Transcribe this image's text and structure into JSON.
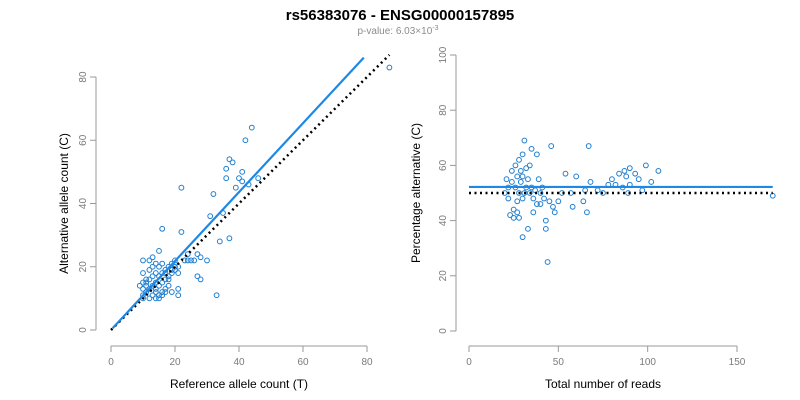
{
  "title": "rs56383076 - ENSG00000157895",
  "subtitle": {
    "prefix": "p-value: 6.03×10",
    "exponent": "-3"
  },
  "colors": {
    "points": "#1f7fd1",
    "fit_line": "#1e88e5",
    "reference_line": "#000000",
    "axis": "#9a9a9a"
  },
  "chart_data": [
    {
      "type": "scatter",
      "xlabel": "Reference allele count (T)",
      "ylabel": "Alternative allele count (C)",
      "xlim": [
        0,
        80
      ],
      "ylim": [
        0,
        80
      ],
      "xticks": [
        0,
        20,
        40,
        60,
        80
      ],
      "yticks": [
        0,
        20,
        40,
        60,
        80
      ],
      "grid": false,
      "points": [
        [
          10,
          10
        ],
        [
          10,
          11
        ],
        [
          10,
          13
        ],
        [
          10,
          15
        ],
        [
          10,
          18
        ],
        [
          10,
          22
        ],
        [
          11,
          12
        ],
        [
          11,
          14
        ],
        [
          11,
          16
        ],
        [
          12,
          10
        ],
        [
          12,
          13
        ],
        [
          12,
          16
        ],
        [
          12,
          19
        ],
        [
          12,
          22
        ],
        [
          13,
          11
        ],
        [
          13,
          14
        ],
        [
          13,
          17
        ],
        [
          13,
          20
        ],
        [
          13,
          23
        ],
        [
          14,
          12
        ],
        [
          14,
          15
        ],
        [
          14,
          18
        ],
        [
          14,
          21
        ],
        [
          14,
          13
        ],
        [
          15,
          10
        ],
        [
          15,
          14
        ],
        [
          15,
          17
        ],
        [
          15,
          20
        ],
        [
          15,
          25
        ],
        [
          15,
          11
        ],
        [
          16,
          12
        ],
        [
          16,
          15
        ],
        [
          16,
          18
        ],
        [
          16,
          21
        ],
        [
          16,
          32
        ],
        [
          16,
          11
        ],
        [
          17,
          13
        ],
        [
          17,
          16
        ],
        [
          17,
          19
        ],
        [
          17,
          12
        ],
        [
          18,
          14
        ],
        [
          18,
          17
        ],
        [
          18,
          20
        ],
        [
          18,
          16
        ],
        [
          19,
          18
        ],
        [
          19,
          21
        ],
        [
          19,
          19
        ],
        [
          20,
          19
        ],
        [
          20,
          22
        ],
        [
          20,
          20
        ],
        [
          21,
          11
        ],
        [
          21,
          13
        ],
        [
          21,
          18
        ],
        [
          21,
          20
        ],
        [
          22,
          45
        ],
        [
          22,
          31
        ],
        [
          23,
          22
        ],
        [
          24,
          24
        ],
        [
          25,
          22
        ],
        [
          26,
          22
        ],
        [
          27,
          17
        ],
        [
          27,
          24
        ],
        [
          28,
          16
        ],
        [
          28,
          23
        ],
        [
          30,
          22
        ],
        [
          31,
          36
        ],
        [
          32,
          43
        ],
        [
          33,
          11
        ],
        [
          34,
          28
        ],
        [
          35,
          37
        ],
        [
          36,
          48
        ],
        [
          36,
          51
        ],
        [
          37,
          54
        ],
        [
          37,
          29
        ],
        [
          38,
          53
        ],
        [
          39,
          45
        ],
        [
          40,
          48
        ],
        [
          41,
          50
        ],
        [
          41,
          47
        ],
        [
          42,
          60
        ],
        [
          43,
          46
        ],
        [
          44,
          64
        ],
        [
          46,
          48
        ],
        [
          87,
          83
        ],
        [
          24,
          22
        ],
        [
          17,
          18
        ],
        [
          11,
          15
        ],
        [
          9,
          14
        ],
        [
          19,
          12
        ],
        [
          14,
          10
        ]
      ],
      "fit_line": {
        "slope": 1.09,
        "intercept": 0,
        "x_range": [
          0.5,
          79
        ]
      },
      "reference_line": {
        "slope": 1.0,
        "intercept": 0,
        "x_range": [
          0,
          87
        ]
      }
    },
    {
      "type": "scatter",
      "xlabel": "Total number of reads",
      "ylabel": "Percentage alternative (C)",
      "xlim": [
        0,
        150
      ],
      "ylim": [
        0,
        100
      ],
      "xticks": [
        0,
        50,
        100,
        150
      ],
      "yticks": [
        0,
        20,
        40,
        60,
        80,
        100
      ],
      "grid": false,
      "points": [
        [
          20,
          50
        ],
        [
          21,
          55
        ],
        [
          22,
          52
        ],
        [
          22,
          48
        ],
        [
          23,
          42
        ],
        [
          24,
          54
        ],
        [
          24,
          58
        ],
        [
          25,
          41
        ],
        [
          25,
          44
        ],
        [
          26,
          60
        ],
        [
          26,
          52
        ],
        [
          27,
          43
        ],
        [
          27,
          47
        ],
        [
          27,
          56
        ],
        [
          28,
          50
        ],
        [
          28,
          62
        ],
        [
          28,
          41
        ],
        [
          29,
          54
        ],
        [
          29,
          58
        ],
        [
          30,
          34
        ],
        [
          30,
          48
        ],
        [
          30,
          64
        ],
        [
          31,
          50
        ],
        [
          31,
          69
        ],
        [
          32,
          52
        ],
        [
          32,
          59
        ],
        [
          33,
          55
        ],
        [
          33,
          37
        ],
        [
          34,
          50
        ],
        [
          34,
          60
        ],
        [
          35,
          52
        ],
        [
          35,
          66
        ],
        [
          36,
          43
        ],
        [
          36,
          48
        ],
        [
          37,
          51
        ],
        [
          38,
          46
        ],
        [
          38,
          64
        ],
        [
          39,
          55
        ],
        [
          40,
          50
        ],
        [
          40,
          46
        ],
        [
          41,
          52
        ],
        [
          42,
          48
        ],
        [
          43,
          37
        ],
        [
          43,
          40
        ],
        [
          44,
          25
        ],
        [
          45,
          47
        ],
        [
          46,
          67
        ],
        [
          47,
          45
        ],
        [
          48,
          43
        ],
        [
          50,
          47
        ],
        [
          52,
          50
        ],
        [
          54,
          57
        ],
        [
          58,
          45
        ],
        [
          60,
          56
        ],
        [
          64,
          47
        ],
        [
          65,
          51
        ],
        [
          66,
          43
        ],
        [
          67,
          67
        ],
        [
          68,
          54
        ],
        [
          72,
          51
        ],
        [
          75,
          50
        ],
        [
          78,
          53
        ],
        [
          80,
          55
        ],
        [
          82,
          53
        ],
        [
          84,
          57
        ],
        [
          86,
          52
        ],
        [
          87,
          58
        ],
        [
          88,
          56
        ],
        [
          89,
          50
        ],
        [
          90,
          53
        ],
        [
          90,
          59
        ],
        [
          95,
          55
        ],
        [
          97,
          51
        ],
        [
          99,
          60
        ],
        [
          102,
          54
        ],
        [
          106,
          58
        ],
        [
          170,
          49
        ],
        [
          93,
          57
        ],
        [
          57,
          50
        ],
        [
          30,
          56
        ]
      ],
      "fit_line": {
        "y": 52.2,
        "x_range": [
          0,
          170
        ]
      },
      "reference_line": {
        "y": 50,
        "x_range": [
          0,
          170
        ]
      }
    }
  ]
}
